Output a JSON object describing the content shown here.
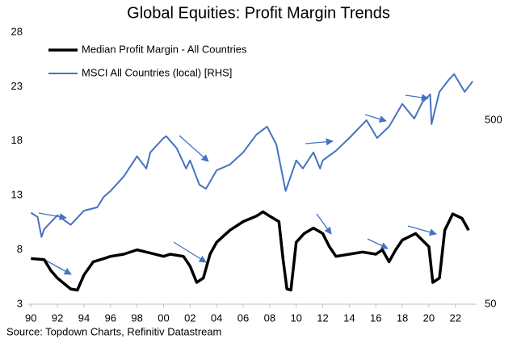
{
  "chart_data": {
    "type": "line",
    "title": "Global Equities: Profit Margin Trends",
    "source": "Source: Topdown Charts, Refinitiv Datastream",
    "xlim": [
      1989.8,
      2023.6
    ],
    "xticks": [
      {
        "value": 1990,
        "label": "90"
      },
      {
        "value": 1992,
        "label": "92"
      },
      {
        "value": 1994,
        "label": "94"
      },
      {
        "value": 1996,
        "label": "96"
      },
      {
        "value": 1998,
        "label": "98"
      },
      {
        "value": 2000,
        "label": "00"
      },
      {
        "value": 2002,
        "label": "02"
      },
      {
        "value": 2004,
        "label": "04"
      },
      {
        "value": 2006,
        "label": "06"
      },
      {
        "value": 2008,
        "label": "08"
      },
      {
        "value": 2010,
        "label": "10"
      },
      {
        "value": 2012,
        "label": "12"
      },
      {
        "value": 2014,
        "label": "14"
      },
      {
        "value": 2016,
        "label": "16"
      },
      {
        "value": 2018,
        "label": "18"
      },
      {
        "value": 2020,
        "label": "20"
      },
      {
        "value": 2022,
        "label": "22"
      }
    ],
    "ylim": [
      3,
      28
    ],
    "yticks": [
      3,
      8,
      13,
      18,
      23,
      28
    ],
    "y2lim": [
      50,
      1500
    ],
    "y2ticks": [
      50,
      500
    ],
    "y2_log": true,
    "grid": false,
    "legend": "top-left",
    "series": [
      {
        "name": "Median Profit Margin - All Countries",
        "color": "#000000",
        "x": [
          1990,
          1991,
          1991.5,
          1992,
          1992.5,
          1993,
          1993.5,
          1994,
          1994.7,
          1995.5,
          1996,
          1997,
          1998,
          1999,
          2000,
          2000.5,
          2001.5,
          2002,
          2002.5,
          2003,
          2003.5,
          2004,
          2005,
          2006,
          2007,
          2007.5,
          2008,
          2008.7,
          2009,
          2009.3,
          2009.6,
          2010,
          2010.6,
          2011.3,
          2012,
          2012.5,
          2013,
          2014,
          2015,
          2016,
          2016.5,
          2017,
          2017.5,
          2018,
          2019,
          2019.5,
          2020,
          2020.3,
          2020.8,
          2021.2,
          2021.8,
          2022.5,
          2023
        ],
        "values": [
          7.2,
          7.1,
          6.1,
          5.4,
          4.9,
          4.4,
          4.3,
          5.7,
          6.9,
          7.2,
          7.4,
          7.6,
          8.0,
          7.7,
          7.4,
          7.6,
          7.4,
          6.5,
          5.0,
          5.4,
          7.6,
          8.7,
          9.8,
          10.6,
          11.1,
          11.5,
          11.1,
          10.6,
          7.2,
          4.4,
          4.3,
          8.7,
          9.5,
          10.0,
          9.5,
          8.3,
          7.4,
          7.6,
          7.8,
          7.6,
          8.0,
          6.9,
          8.0,
          8.9,
          9.5,
          8.9,
          8.3,
          5.0,
          5.4,
          9.8,
          11.3,
          10.9,
          9.8
        ]
      },
      {
        "name": "MSCI All Countries (local) [RHS]",
        "color": "#4472c4",
        "axis": "y2",
        "x": [
          1990,
          1990.5,
          1990.8,
          1991,
          1992,
          1993,
          1994,
          1995,
          1995.5,
          1996,
          1997,
          1998,
          1998.7,
          1999,
          2000,
          2000.2,
          2001,
          2001.7,
          2002,
          2002.7,
          2003.2,
          2004,
          2005,
          2006,
          2007,
          2007.8,
          2008.5,
          2009.2,
          2010,
          2010.5,
          2011.3,
          2011.8,
          2012,
          2013,
          2014,
          2015.3,
          2016.1,
          2017,
          2018,
          2018.9,
          2019.5,
          2020.1,
          2020.2,
          2020.8,
          2021.5,
          2021.9,
          2022.7,
          2023.3
        ],
        "values": [
          157,
          149,
          116,
          128,
          152,
          135,
          161,
          168,
          192,
          206,
          247,
          318,
          273,
          334,
          400,
          409,
          351,
          273,
          302,
          223,
          212,
          267,
          287,
          334,
          417,
          461,
          369,
          206,
          302,
          273,
          334,
          273,
          302,
          341,
          400,
          500,
          400,
          461,
          612,
          510,
          624,
          690,
          476,
          712,
          828,
          889,
          712,
          812
        ]
      }
    ]
  }
}
